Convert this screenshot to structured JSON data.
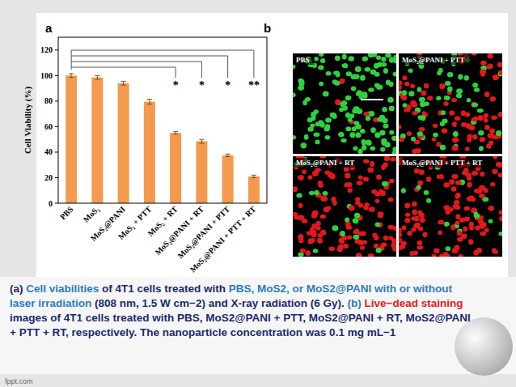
{
  "chart_data": {
    "type": "bar",
    "categories": [
      "PBS",
      "MoS₂",
      "MoS₂@PANI",
      "MoS₂ + PTT",
      "MoS₂ + RT",
      "MoS₂@PANI + RT",
      "MoS₂@PANI + PTT",
      "MoS₂@PANI + PTT + RT"
    ],
    "values": [
      100,
      98.5,
      94,
      79.5,
      55,
      48.5,
      37.5,
      21
    ],
    "errors": [
      1.5,
      1.5,
      1.5,
      2,
      1,
      1.5,
      1,
      1
    ],
    "color": "#f39a4e",
    "y_label": "Cell Viability (%)",
    "ylim": [
      0,
      130
    ],
    "yticks": [
      0,
      20,
      40,
      60,
      80,
      100,
      120
    ],
    "grid": false,
    "annotations": [
      {
        "text": "*",
        "category": "MoS₂ + RT"
      },
      {
        "text": "*",
        "category": "MoS₂@PANI + RT"
      },
      {
        "text": "*",
        "category": "MoS₂@PANI + PTT"
      },
      {
        "text": "**",
        "category": "MoS₂@PANI + PTT + RT"
      }
    ]
  },
  "chart_panel_label": "a",
  "image_panel": {
    "label": "b",
    "images": [
      {
        "label": "PBS"
      },
      {
        "label": "MoS₂@PANI + PTT"
      },
      {
        "label": "MoS₂@PANI + RT"
      },
      {
        "label": "MoS₂@PANI + PTT + RT"
      }
    ]
  },
  "caption": {
    "segments": [
      {
        "text": "(a) ",
        "color": "#1c2a6e"
      },
      {
        "text": "Cell viabilities",
        "color": "#2b7cc0"
      },
      {
        "text": " of 4T1 cells treated with ",
        "color": "#1c2a6e"
      },
      {
        "text": "PBS, MoS2, or MoS2@PANI with or without laser irradiation",
        "color": "#2b7cc0"
      },
      {
        "text": " (808 nm, 1.5 W cm−2) and X-ray radiation (6 Gy). ",
        "color": "#1c2a6e"
      },
      {
        "text": "(b) ",
        "color": "#2b7cc0"
      },
      {
        "text": "Live−dead staining",
        "color": "#e02020"
      },
      {
        "text": " images of 4T1 cells treated with PBS, MoS2@PANI + PTT, MoS2@PANI + RT, MoS2@PANI + PTT + RT, respectively. The nanoparticle concentration was 0.1 mg mL−1",
        "color": "#1c2a6e"
      }
    ]
  },
  "footer": "fppt.com"
}
